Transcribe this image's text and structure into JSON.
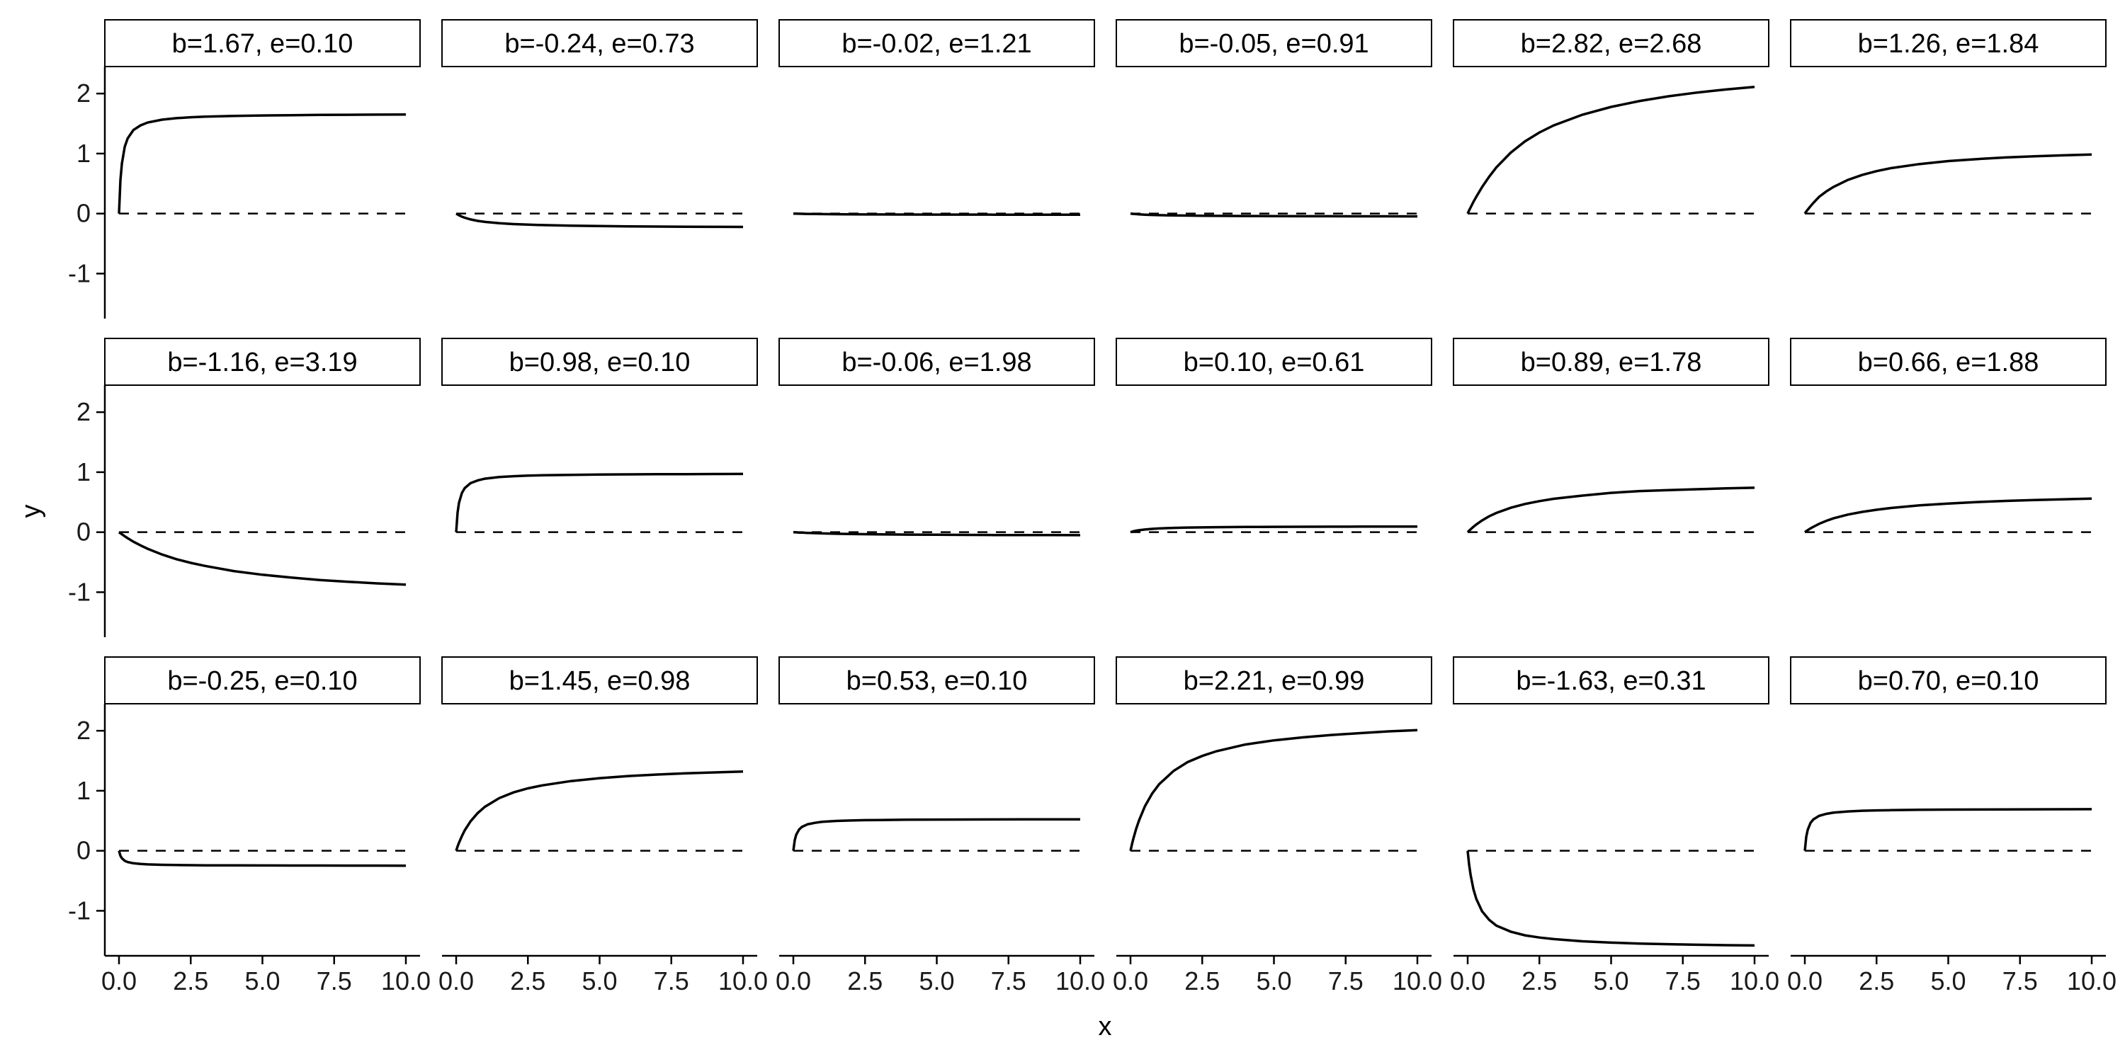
{
  "chart_data": {
    "type": "line",
    "layout": "facet-grid",
    "nrow": 3,
    "ncol": 6,
    "xlabel": "x",
    "ylabel": "y",
    "xlim": [
      0,
      10
    ],
    "ylim": [
      -1.75,
      2.45
    ],
    "x_ticks": [
      0,
      2.5,
      5,
      7.5,
      10
    ],
    "x_tick_labels": [
      "0.0",
      "2.5",
      "5.0",
      "7.5",
      "10.0"
    ],
    "y_ticks": [
      -1,
      0,
      1,
      2
    ],
    "y_tick_labels": [
      "-1",
      "0",
      "1",
      "2"
    ],
    "reference_line": {
      "y": 0,
      "style": "dashed"
    },
    "curve_x": [
      0,
      0.05,
      0.1,
      0.2,
      0.3,
      0.5,
      0.75,
      1,
      1.5,
      2,
      2.5,
      3,
      4,
      5,
      6,
      7,
      8,
      9,
      10
    ],
    "panels": [
      {
        "title": "b=1.67, e=0.10",
        "y": [
          0,
          0.557,
          0.835,
          1.113,
          1.253,
          1.392,
          1.47,
          1.518,
          1.565,
          1.59,
          1.605,
          1.615,
          1.627,
          1.635,
          1.64,
          1.644,
          1.647,
          1.649,
          1.65
        ]
      },
      {
        "title": "b=-0.24, e=0.73",
        "y": [
          0,
          -0.015,
          -0.029,
          -0.051,
          -0.069,
          -0.097,
          -0.122,
          -0.139,
          -0.161,
          -0.175,
          -0.185,
          -0.192,
          -0.202,
          -0.208,
          -0.213,
          -0.216,
          -0.219,
          -0.221,
          -0.222
        ]
      },
      {
        "title": "b=-0.02, e=1.21",
        "y": [
          0,
          -0.001,
          -0.002,
          -0.003,
          -0.004,
          -0.006,
          -0.008,
          -0.009,
          -0.011,
          -0.013,
          -0.014,
          -0.015,
          -0.016,
          -0.017,
          -0.017,
          -0.018,
          -0.018,
          -0.018,
          -0.019
        ]
      },
      {
        "title": "b=-0.05, e=0.91",
        "y": [
          0,
          -0.003,
          -0.005,
          -0.009,
          -0.012,
          -0.018,
          -0.023,
          -0.026,
          -0.031,
          -0.034,
          -0.037,
          -0.038,
          -0.041,
          -0.042,
          -0.044,
          -0.044,
          -0.045,
          -0.045,
          -0.046
        ]
      },
      {
        "title": "b=2.82, e=2.68",
        "y": [
          0,
          0.052,
          0.101,
          0.194,
          0.28,
          0.441,
          0.616,
          0.77,
          1.015,
          1.204,
          1.352,
          1.47,
          1.648,
          1.778,
          1.877,
          1.955,
          2.017,
          2.068,
          2.11
        ]
      },
      {
        "title": "b=1.26, e=1.84",
        "y": [
          0,
          0.034,
          0.066,
          0.125,
          0.18,
          0.28,
          0.37,
          0.444,
          0.561,
          0.644,
          0.708,
          0.757,
          0.826,
          0.875,
          0.908,
          0.935,
          0.955,
          0.971,
          0.985
        ]
      },
      {
        "title": "b=-1.16, e=3.19",
        "y": [
          0,
          -0.018,
          -0.035,
          -0.068,
          -0.1,
          -0.158,
          -0.22,
          -0.277,
          -0.372,
          -0.45,
          -0.511,
          -0.562,
          -0.648,
          -0.709,
          -0.755,
          -0.797,
          -0.826,
          -0.853,
          -0.873
        ]
      },
      {
        "title": "b=0.98, e=0.10",
        "y": [
          0,
          0.327,
          0.49,
          0.653,
          0.735,
          0.817,
          0.862,
          0.891,
          0.919,
          0.933,
          0.942,
          0.948,
          0.955,
          0.96,
          0.963,
          0.966,
          0.967,
          0.969,
          0.97
        ]
      },
      {
        "title": "b=-0.06, e=1.98",
        "y": [
          0,
          -0.002,
          -0.003,
          -0.006,
          -0.008,
          -0.012,
          -0.016,
          -0.02,
          -0.026,
          -0.03,
          -0.033,
          -0.036,
          -0.04,
          -0.043,
          -0.045,
          -0.047,
          -0.048,
          -0.049,
          -0.05
        ]
      },
      {
        "title": "b=0.10, e=0.61",
        "y": [
          0,
          0.008,
          0.014,
          0.025,
          0.033,
          0.045,
          0.055,
          0.062,
          0.071,
          0.077,
          0.08,
          0.083,
          0.087,
          0.089,
          0.091,
          0.092,
          0.093,
          0.094,
          0.094
        ]
      },
      {
        "title": "b=0.89, e=1.78",
        "y": [
          0,
          0.024,
          0.047,
          0.089,
          0.128,
          0.195,
          0.265,
          0.32,
          0.407,
          0.47,
          0.518,
          0.556,
          0.61,
          0.656,
          0.685,
          0.7,
          0.716,
          0.73,
          0.74
        ]
      },
      {
        "title": "b=0.66, e=1.88",
        "y": [
          0,
          0.017,
          0.034,
          0.065,
          0.091,
          0.14,
          0.189,
          0.231,
          0.293,
          0.338,
          0.374,
          0.403,
          0.447,
          0.478,
          0.502,
          0.521,
          0.536,
          0.548,
          0.559
        ]
      },
      {
        "title": "b=-0.25, e=0.10",
        "y": [
          0,
          -0.083,
          -0.125,
          -0.167,
          -0.188,
          -0.208,
          -0.22,
          -0.227,
          -0.234,
          -0.238,
          -0.24,
          -0.242,
          -0.244,
          -0.245,
          -0.246,
          -0.246,
          -0.247,
          -0.247,
          -0.248
        ]
      },
      {
        "title": "b=1.45, e=0.98",
        "y": [
          0,
          0.071,
          0.134,
          0.245,
          0.34,
          0.49,
          0.628,
          0.732,
          0.877,
          0.973,
          1.04,
          1.09,
          1.162,
          1.21,
          1.245,
          1.27,
          1.29,
          1.306,
          1.32
        ]
      },
      {
        "title": "b=0.53, e=0.10",
        "y": [
          0,
          0.177,
          0.265,
          0.353,
          0.398,
          0.442,
          0.466,
          0.482,
          0.497,
          0.505,
          0.51,
          0.513,
          0.517,
          0.52,
          0.521,
          0.522,
          0.523,
          0.524,
          0.525
        ]
      },
      {
        "title": "b=2.21, e=0.99",
        "y": [
          0,
          0.106,
          0.2,
          0.37,
          0.51,
          0.74,
          0.95,
          1.11,
          1.33,
          1.48,
          1.58,
          1.66,
          1.77,
          1.84,
          1.89,
          1.93,
          1.96,
          1.99,
          2.01
        ]
      },
      {
        "title": "b=-1.63, e=0.31",
        "y": [
          0,
          -0.227,
          -0.398,
          -0.639,
          -0.802,
          -1.008,
          -1.152,
          -1.247,
          -1.348,
          -1.409,
          -1.446,
          -1.472,
          -1.508,
          -1.531,
          -1.546,
          -1.557,
          -1.566,
          -1.573,
          -1.578
        ]
      },
      {
        "title": "b=0.70, e=0.10",
        "y": [
          0,
          0.233,
          0.35,
          0.467,
          0.525,
          0.583,
          0.615,
          0.636,
          0.656,
          0.667,
          0.673,
          0.677,
          0.683,
          0.686,
          0.688,
          0.69,
          0.691,
          0.692,
          0.693
        ]
      }
    ]
  }
}
